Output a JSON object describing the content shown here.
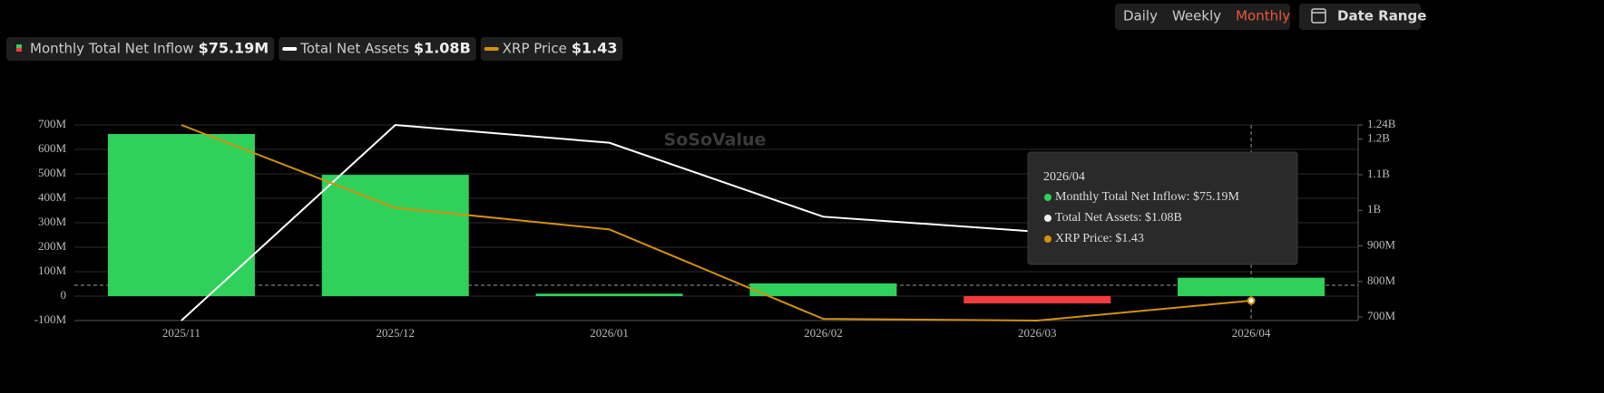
{
  "controls": {
    "periods": [
      "Daily",
      "Weekly",
      "Monthly"
    ],
    "selected": "Monthly",
    "date_range": "Date Range"
  },
  "watermark": "SoSoValue",
  "chart_data": {
    "type": "bar-line",
    "categories": [
      "2025/11",
      "2025/12",
      "2026/01",
      "2026/02",
      "2026/03",
      "2026/04"
    ],
    "series": [
      {
        "name": "Monthly Total Net Inflow",
        "type": "bar",
        "color": "#2fd15a",
        "negative_color": "#f23b3b",
        "values": [
          663000000,
          496000000,
          10000000,
          52000000,
          -30000000,
          75190000
        ],
        "current": "$75.19M"
      },
      {
        "name": "Total Net Assets",
        "type": "line",
        "axis": "y2",
        "color": "#ffffff",
        "values": [
          690000000,
          1240000000,
          1190000000,
          982000000,
          940000000,
          1080000000
        ],
        "current": "$1.08B"
      },
      {
        "name": "XRP Price",
        "type": "line",
        "axis": "y3",
        "color": "#d4900f",
        "values": [
          1.96,
          1.71,
          1.645,
          1.375,
          1.37,
          1.43
        ],
        "current": "$1.43"
      }
    ],
    "ylim": [
      -100000000,
      700000000
    ],
    "yticks": [
      {
        "value": -100000000,
        "label": "-100M"
      },
      0,
      {
        "value": 100000000,
        "label": "100M"
      },
      {
        "value": 200000000,
        "label": "200M"
      },
      {
        "value": 300000000,
        "label": "300M"
      },
      {
        "value": 400000000,
        "label": "400M"
      },
      {
        "value": 500000000,
        "label": "500M"
      },
      {
        "value": 600000000,
        "label": "600M"
      },
      {
        "value": 700000000,
        "label": "700M"
      }
    ],
    "y2lim": [
      690000000,
      1240000000
    ],
    "y2ticks": [
      {
        "value": 700000000,
        "label": "700M"
      },
      {
        "value": 800000000,
        "label": "800M"
      },
      {
        "value": 900000000,
        "label": "900M"
      },
      {
        "value": 1000000000,
        "label": "1B"
      },
      {
        "value": 1100000000,
        "label": "1.1B"
      },
      {
        "value": 1200000000,
        "label": "1.2B"
      },
      {
        "value": 1240000000,
        "label": "1.24B"
      }
    ],
    "y3lim": [
      1.37,
      1.96
    ],
    "grid": true,
    "tooltip": {
      "title": "2026/04",
      "lines": [
        "Monthly Total Net Inflow: $75.19M",
        "Total Net Assets: $1.08B",
        "XRP Price: $1.43"
      ]
    }
  }
}
